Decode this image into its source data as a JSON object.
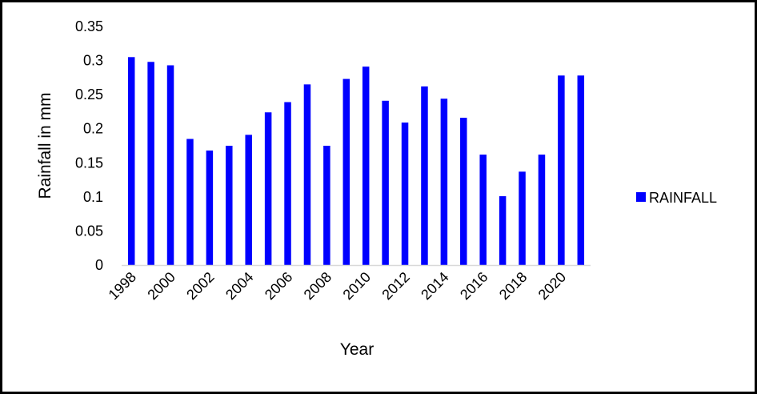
{
  "chart_data": {
    "type": "bar",
    "title": "",
    "xlabel": "Year",
    "ylabel": "Rainfall in mm",
    "ylim": [
      0,
      0.35
    ],
    "yticks": [
      "0.35",
      "0.3",
      "0.25",
      "0.2",
      "0.15",
      "0.1",
      "0.05",
      "0"
    ],
    "grid": false,
    "legend_position": "right",
    "color": "#0000ff",
    "categories": [
      "1998",
      "1999",
      "2000",
      "2001",
      "2002",
      "2003",
      "2004",
      "2005",
      "2006",
      "2007",
      "2008",
      "2009",
      "2010",
      "2011",
      "2012",
      "2013",
      "2014",
      "2015",
      "2016",
      "2017",
      "2018",
      "2019",
      "2020",
      "2021"
    ],
    "xtick_labels": [
      "1998",
      "2000",
      "2002",
      "2004",
      "2006",
      "2008",
      "2010",
      "2012",
      "2014",
      "2016",
      "2018",
      "2020"
    ],
    "series": [
      {
        "name": "RAINFALL",
        "values": [
          0.305,
          0.298,
          0.293,
          0.185,
          0.168,
          0.175,
          0.191,
          0.224,
          0.239,
          0.265,
          0.175,
          0.273,
          0.291,
          0.241,
          0.209,
          0.262,
          0.244,
          0.216,
          0.162,
          0.101,
          0.137,
          0.162,
          0.278,
          0.278
        ]
      }
    ]
  }
}
